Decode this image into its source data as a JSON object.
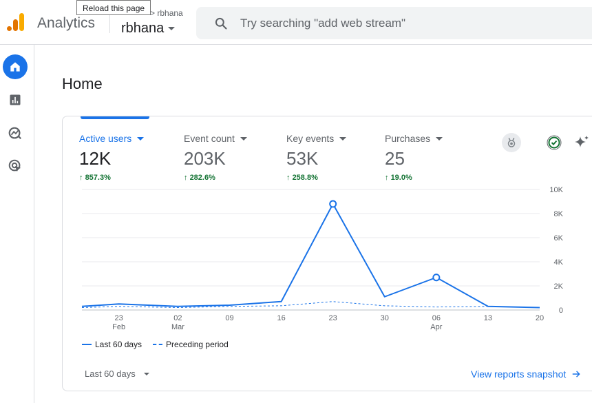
{
  "header": {
    "app_name": "Analytics",
    "breadcrumb_account": "rbhana",
    "property_name": "rbhana",
    "tooltip": "Reload this page",
    "search_placeholder": "Try searching \"add web stream\""
  },
  "sidenav": {
    "items": [
      {
        "name": "home",
        "active": true
      },
      {
        "name": "reports"
      },
      {
        "name": "explore"
      },
      {
        "name": "advertising"
      }
    ]
  },
  "main": {
    "page_title": "Home",
    "metrics": [
      {
        "label": "Active users",
        "value": "12K",
        "change": "857.3%",
        "selected": true
      },
      {
        "label": "Event count",
        "value": "203K",
        "change": "282.6%"
      },
      {
        "label": "Key events",
        "value": "53K",
        "change": "258.8%"
      },
      {
        "label": "Purchases",
        "value": "25",
        "change": "19.0%"
      }
    ],
    "legend": {
      "current": "Last 60 days",
      "previous": "Preceding period"
    },
    "date_range": "Last 60 days",
    "view_link": "View reports snapshot"
  },
  "colors": {
    "accent": "#1a73e8",
    "positive": "#137333"
  },
  "chart_data": {
    "type": "line",
    "x": [
      "2024-02-18",
      "2024-02-23",
      "2024-03-02",
      "2024-03-09",
      "2024-03-16",
      "2024-03-23",
      "2024-03-30",
      "2024-04-06",
      "2024-04-13",
      "2024-04-20"
    ],
    "x_ticks": [
      {
        "date": "2024-02-23",
        "day": "23",
        "month": "Feb"
      },
      {
        "date": "2024-03-02",
        "day": "02",
        "month": "Mar"
      },
      {
        "date": "2024-03-09",
        "day": "09",
        "month": ""
      },
      {
        "date": "2024-03-16",
        "day": "16",
        "month": ""
      },
      {
        "date": "2024-03-23",
        "day": "23",
        "month": ""
      },
      {
        "date": "2024-03-30",
        "day": "30",
        "month": ""
      },
      {
        "date": "2024-04-06",
        "day": "06",
        "month": "Apr"
      },
      {
        "date": "2024-04-13",
        "day": "13",
        "month": ""
      },
      {
        "date": "2024-04-20",
        "day": "20",
        "month": ""
      }
    ],
    "series": [
      {
        "name": "Last 60 days",
        "style": "solid",
        "values": [
          300,
          500,
          300,
          400,
          700,
          8800,
          1100,
          2700,
          300,
          200
        ],
        "markers": [
          "2024-03-23",
          "2024-04-06"
        ]
      },
      {
        "name": "Preceding period",
        "style": "dashed",
        "values": [
          200,
          300,
          200,
          300,
          350,
          700,
          350,
          250,
          300,
          200
        ]
      }
    ],
    "yticks": [
      "0",
      "2K",
      "4K",
      "6K",
      "8K",
      "10K"
    ],
    "ylim": [
      0,
      10000
    ],
    "grid": true
  }
}
